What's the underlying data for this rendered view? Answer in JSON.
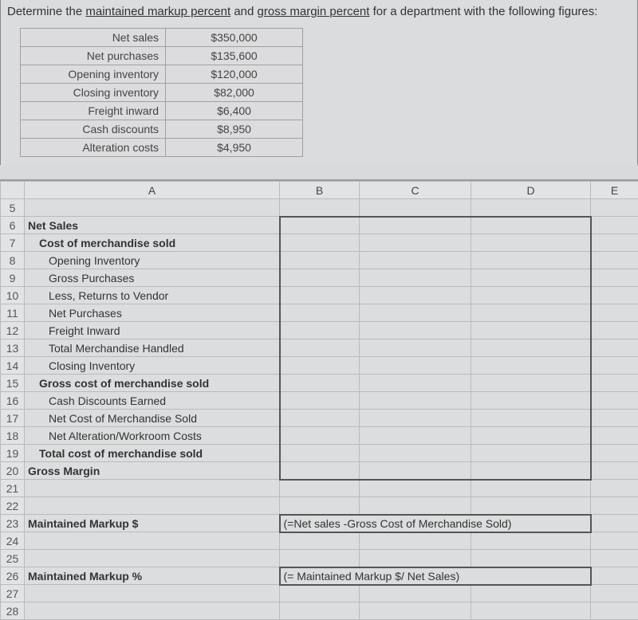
{
  "question": {
    "prefix": "Determine the ",
    "u1": "maintained markup percent",
    "mid": " and ",
    "u2": "gross margin percent",
    "suffix": " for a department with the following figures:"
  },
  "figures": [
    {
      "label": "Net sales",
      "value": "$350,000"
    },
    {
      "label": "Net purchases",
      "value": "$135,600"
    },
    {
      "label": "Opening inventory",
      "value": "$120,000"
    },
    {
      "label": "Closing inventory",
      "value": "$82,000"
    },
    {
      "label": "Freight inward",
      "value": "$6,400"
    },
    {
      "label": "Cash discounts",
      "value": "$8,950"
    },
    {
      "label": "Alteration costs",
      "value": "$4,950"
    }
  ],
  "sheet": {
    "columns": [
      "A",
      "B",
      "C",
      "D",
      "E"
    ],
    "rows": {
      "5": {
        "A": "",
        "bold": false,
        "indent": 0
      },
      "6": {
        "A": "Net Sales",
        "bold": true,
        "indent": 0
      },
      "7": {
        "A": "Cost of merchandise sold",
        "bold": true,
        "indent": 1
      },
      "8": {
        "A": "Opening Inventory",
        "bold": false,
        "indent": 2
      },
      "9": {
        "A": "Gross Purchases",
        "bold": false,
        "indent": 2
      },
      "10": {
        "A": "Less, Returns to Vendor",
        "bold": false,
        "indent": 2
      },
      "11": {
        "A": "Net Purchases",
        "bold": false,
        "indent": 2
      },
      "12": {
        "A": "Freight Inward",
        "bold": false,
        "indent": 2
      },
      "13": {
        "A": "Total Merchandise Handled",
        "bold": false,
        "indent": 2
      },
      "14": {
        "A": "Closing Inventory",
        "bold": false,
        "indent": 2
      },
      "15": {
        "A": "Gross cost of merchandise sold",
        "bold": true,
        "indent": 1
      },
      "16": {
        "A": "Cash Discounts Earned",
        "bold": false,
        "indent": 2
      },
      "17": {
        "A": "Net Cost of Merchandise Sold",
        "bold": false,
        "indent": 2
      },
      "18": {
        "A": "Net Alteration/Workroom Costs",
        "bold": false,
        "indent": 2
      },
      "19": {
        "A": "Total cost of merchandise sold",
        "bold": true,
        "indent": 1
      },
      "20": {
        "A": "Gross Margin",
        "bold": true,
        "indent": 0
      },
      "21": {
        "A": "",
        "bold": false,
        "indent": 0
      },
      "22": {
        "A": "",
        "bold": false,
        "indent": 0
      },
      "23": {
        "A": "Maintained Markup $",
        "bold": true,
        "indent": 0,
        "B": "(=Net sales -Gross Cost of Merchandise Sold)"
      },
      "24": {
        "A": "",
        "bold": false,
        "indent": 0
      },
      "25": {
        "A": "",
        "bold": false,
        "indent": 0
      },
      "26": {
        "A": "Maintained Markup %",
        "bold": true,
        "indent": 0,
        "B": "(= Maintained Markup $/ Net Sales)"
      },
      "27": {
        "A": "",
        "bold": false,
        "indent": 0
      },
      "28": {
        "A": "",
        "bold": false,
        "indent": 0
      }
    },
    "highlightBoxes": {
      "main": {
        "fromRow": 6,
        "toRow": 20,
        "fromCol": "B",
        "toCol": "D"
      },
      "r23": {
        "row": 23,
        "fromCol": "B",
        "toCol": "D"
      },
      "r26": {
        "row": 26,
        "fromCol": "B",
        "toCol": "D"
      }
    }
  },
  "colors": {
    "pageBg": "#d8dadc",
    "border": "#b8bbbd",
    "headerBg": "#e2e3e4",
    "textColor": "#333333",
    "boxBorder": "#555555"
  }
}
